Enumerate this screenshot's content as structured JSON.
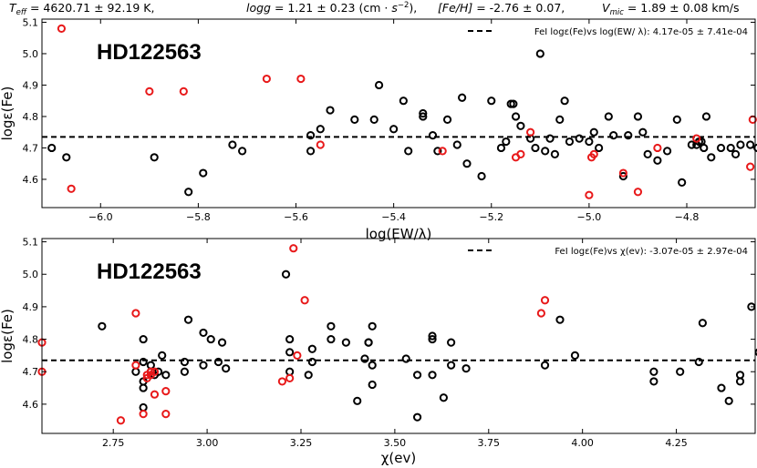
{
  "header": {
    "teff": "T_eff = 4620.71 ± 92.19 K,",
    "logg": "logg = 1.21 ± 0.23 (cm · s^-2),",
    "feh": "[Fe/H] = -2.76 ± 0.07,",
    "vmic": "V_mic = 1.89 ± 0.08 km/s"
  },
  "colors": {
    "black": "#000000",
    "red": "#e8191a"
  },
  "chart_data": [
    {
      "type": "scatter",
      "name": "top",
      "star_label": "HD122563",
      "xlabel": "log(EW/λ)",
      "ylabel": "logε(Fe)",
      "xlim": [
        -6.12,
        -4.66
      ],
      "ylim": [
        4.51,
        5.11
      ],
      "xticks": [
        -6.0,
        -5.8,
        -5.6,
        -5.4,
        -5.2,
        -5.0,
        -4.8
      ],
      "xtick_labels": [
        "−6.0",
        "−5.8",
        "−5.6",
        "−5.4",
        "−5.2",
        "−5.0",
        "−4.8"
      ],
      "yticks": [
        4.6,
        4.7,
        4.8,
        4.9,
        5.0,
        5.1
      ],
      "ytick_labels": [
        "4.6",
        "4.7",
        "4.8",
        "4.9",
        "5.0",
        "5.1"
      ],
      "fit": {
        "intercept": 4.735,
        "legend": "FeI logε(Fe)vs log(EW/ λ): 4.17e-05 ± 7.41e-04"
      },
      "legend_position": "top-right",
      "series": [
        {
          "name": "FeI",
          "color": "black",
          "points": [
            [
              -6.1,
              4.7
            ],
            [
              -6.07,
              4.67
            ],
            [
              -5.89,
              4.67
            ],
            [
              -5.82,
              4.56
            ],
            [
              -5.79,
              4.62
            ],
            [
              -5.73,
              4.71
            ],
            [
              -5.71,
              4.69
            ],
            [
              -5.57,
              4.69
            ],
            [
              -5.57,
              4.74
            ],
            [
              -5.55,
              4.76
            ],
            [
              -5.53,
              4.82
            ],
            [
              -5.48,
              4.79
            ],
            [
              -5.44,
              4.79
            ],
            [
              -5.43,
              4.9
            ],
            [
              -5.4,
              4.76
            ],
            [
              -5.38,
              4.85
            ],
            [
              -5.37,
              4.69
            ],
            [
              -5.34,
              4.8
            ],
            [
              -5.34,
              4.81
            ],
            [
              -5.32,
              4.74
            ],
            [
              -5.31,
              4.69
            ],
            [
              -5.29,
              4.79
            ],
            [
              -5.27,
              4.71
            ],
            [
              -5.26,
              4.86
            ],
            [
              -5.25,
              4.65
            ],
            [
              -5.22,
              4.61
            ],
            [
              -5.2,
              4.85
            ],
            [
              -5.18,
              4.7
            ],
            [
              -5.17,
              4.72
            ],
            [
              -5.16,
              4.84
            ],
            [
              -5.155,
              4.84
            ],
            [
              -5.15,
              4.8
            ],
            [
              -5.14,
              4.77
            ],
            [
              -5.12,
              4.73
            ],
            [
              -5.11,
              4.7
            ],
            [
              -5.1,
              5.0
            ],
            [
              -5.09,
              4.69
            ],
            [
              -5.08,
              4.73
            ],
            [
              -5.07,
              4.68
            ],
            [
              -5.06,
              4.79
            ],
            [
              -5.05,
              4.85
            ],
            [
              -5.04,
              4.72
            ],
            [
              -5.02,
              4.73
            ],
            [
              -5.0,
              4.72
            ],
            [
              -4.99,
              4.75
            ],
            [
              -4.98,
              4.7
            ],
            [
              -4.96,
              4.8
            ],
            [
              -4.95,
              4.74
            ],
            [
              -4.93,
              4.61
            ],
            [
              -4.92,
              4.74
            ],
            [
              -4.9,
              4.8
            ],
            [
              -4.89,
              4.75
            ],
            [
              -4.88,
              4.68
            ],
            [
              -4.86,
              4.66
            ],
            [
              -4.84,
              4.69
            ],
            [
              -4.82,
              4.79
            ],
            [
              -4.81,
              4.59
            ],
            [
              -4.79,
              4.71
            ],
            [
              -4.78,
              4.71
            ],
            [
              -4.775,
              4.72
            ],
            [
              -4.77,
              4.72
            ],
            [
              -4.765,
              4.7
            ],
            [
              -4.76,
              4.8
            ],
            [
              -4.75,
              4.67
            ],
            [
              -4.73,
              4.7
            ],
            [
              -4.71,
              4.7
            ],
            [
              -4.7,
              4.68
            ],
            [
              -4.69,
              4.71
            ],
            [
              -4.67,
              4.71
            ],
            [
              -4.655,
              4.7
            ]
          ]
        },
        {
          "name": "FeII",
          "color": "red",
          "points": [
            [
              -6.08,
              5.08
            ],
            [
              -6.06,
              4.57
            ],
            [
              -5.9,
              4.88
            ],
            [
              -5.83,
              4.88
            ],
            [
              -5.66,
              4.92
            ],
            [
              -5.59,
              4.92
            ],
            [
              -5.55,
              4.71
            ],
            [
              -5.3,
              4.69
            ],
            [
              -5.15,
              4.67
            ],
            [
              -5.14,
              4.68
            ],
            [
              -5.12,
              4.75
            ],
            [
              -5.0,
              4.55
            ],
            [
              -4.995,
              4.67
            ],
            [
              -4.99,
              4.68
            ],
            [
              -4.93,
              4.62
            ],
            [
              -4.9,
              4.56
            ],
            [
              -4.86,
              4.7
            ],
            [
              -4.78,
              4.73
            ],
            [
              -4.67,
              4.64
            ],
            [
              -4.665,
              4.79
            ]
          ]
        }
      ]
    },
    {
      "type": "scatter",
      "name": "bottom",
      "star_label": "HD122563",
      "xlabel": "χ(ev)",
      "ylabel": "logε(Fe)",
      "xlim": [
        2.56,
        4.46
      ],
      "ylim": [
        4.51,
        5.11
      ],
      "xticks": [
        2.75,
        3.0,
        3.25,
        3.5,
        3.75,
        4.0,
        4.25
      ],
      "xtick_labels": [
        "2.75",
        "3.00",
        "3.25",
        "3.50",
        "3.75",
        "4.00",
        "4.25"
      ],
      "yticks": [
        4.6,
        4.7,
        4.8,
        4.9,
        5.0,
        5.1
      ],
      "ytick_labels": [
        "4.6",
        "4.7",
        "4.8",
        "4.9",
        "5.0",
        "5.1"
      ],
      "fit": {
        "intercept": 4.735,
        "legend": "FeI logε(Fe)vs  χ(ev): -3.07e-05 ± 2.97e-04"
      },
      "legend_position": "top-right",
      "series": [
        {
          "name": "FeI",
          "color": "black",
          "points": [
            [
              2.72,
              4.84
            ],
            [
              2.81,
              4.7
            ],
            [
              2.83,
              4.59
            ],
            [
              2.83,
              4.65
            ],
            [
              2.83,
              4.67
            ],
            [
              2.83,
              4.73
            ],
            [
              2.83,
              4.8
            ],
            [
              2.85,
              4.7
            ],
            [
              2.85,
              4.72
            ],
            [
              2.86,
              4.69
            ],
            [
              2.87,
              4.7
            ],
            [
              2.88,
              4.75
            ],
            [
              2.89,
              4.69
            ],
            [
              2.94,
              4.7
            ],
            [
              2.94,
              4.73
            ],
            [
              2.95,
              4.86
            ],
            [
              2.99,
              4.72
            ],
            [
              2.99,
              4.82
            ],
            [
              3.01,
              4.8
            ],
            [
              3.03,
              4.73
            ],
            [
              3.04,
              4.79
            ],
            [
              3.05,
              4.71
            ],
            [
              3.21,
              5.0
            ],
            [
              3.22,
              4.7
            ],
            [
              3.22,
              4.76
            ],
            [
              3.22,
              4.8
            ],
            [
              3.27,
              4.69
            ],
            [
              3.28,
              4.73
            ],
            [
              3.28,
              4.77
            ],
            [
              3.33,
              4.8
            ],
            [
              3.33,
              4.84
            ],
            [
              3.37,
              4.79
            ],
            [
              3.4,
              4.61
            ],
            [
              3.42,
              4.74
            ],
            [
              3.43,
              4.79
            ],
            [
              3.43,
              4.79
            ],
            [
              3.44,
              4.66
            ],
            [
              3.44,
              4.72
            ],
            [
              3.44,
              4.84
            ],
            [
              3.53,
              4.74
            ],
            [
              3.56,
              4.56
            ],
            [
              3.56,
              4.69
            ],
            [
              3.6,
              4.69
            ],
            [
              3.6,
              4.8
            ],
            [
              3.6,
              4.81
            ],
            [
              3.63,
              4.62
            ],
            [
              3.65,
              4.72
            ],
            [
              3.65,
              4.79
            ],
            [
              3.69,
              4.71
            ],
            [
              3.9,
              4.72
            ],
            [
              3.94,
              4.86
            ],
            [
              3.98,
              4.75
            ],
            [
              4.19,
              4.67
            ],
            [
              4.19,
              4.7
            ],
            [
              4.26,
              4.7
            ],
            [
              4.31,
              4.73
            ],
            [
              4.32,
              4.85
            ],
            [
              4.37,
              4.65
            ],
            [
              4.39,
              4.61
            ],
            [
              4.42,
              4.67
            ],
            [
              4.42,
              4.69
            ],
            [
              4.45,
              4.9
            ],
            [
              4.47,
              4.76
            ]
          ]
        },
        {
          "name": "FeII",
          "color": "red",
          "points": [
            [
              2.56,
              4.7
            ],
            [
              2.56,
              4.79
            ],
            [
              2.77,
              4.55
            ],
            [
              2.81,
              4.72
            ],
            [
              2.81,
              4.88
            ],
            [
              2.83,
              4.57
            ],
            [
              2.84,
              4.68
            ],
            [
              2.84,
              4.69
            ],
            [
              2.85,
              4.7
            ],
            [
              2.85,
              4.69
            ],
            [
              2.86,
              4.7
            ],
            [
              2.86,
              4.63
            ],
            [
              2.89,
              4.57
            ],
            [
              2.89,
              4.64
            ],
            [
              3.2,
              4.67
            ],
            [
              3.22,
              4.68
            ],
            [
              3.23,
              5.08
            ],
            [
              3.24,
              4.75
            ],
            [
              3.26,
              4.92
            ],
            [
              3.89,
              4.88
            ],
            [
              3.9,
              4.92
            ]
          ]
        }
      ]
    }
  ]
}
